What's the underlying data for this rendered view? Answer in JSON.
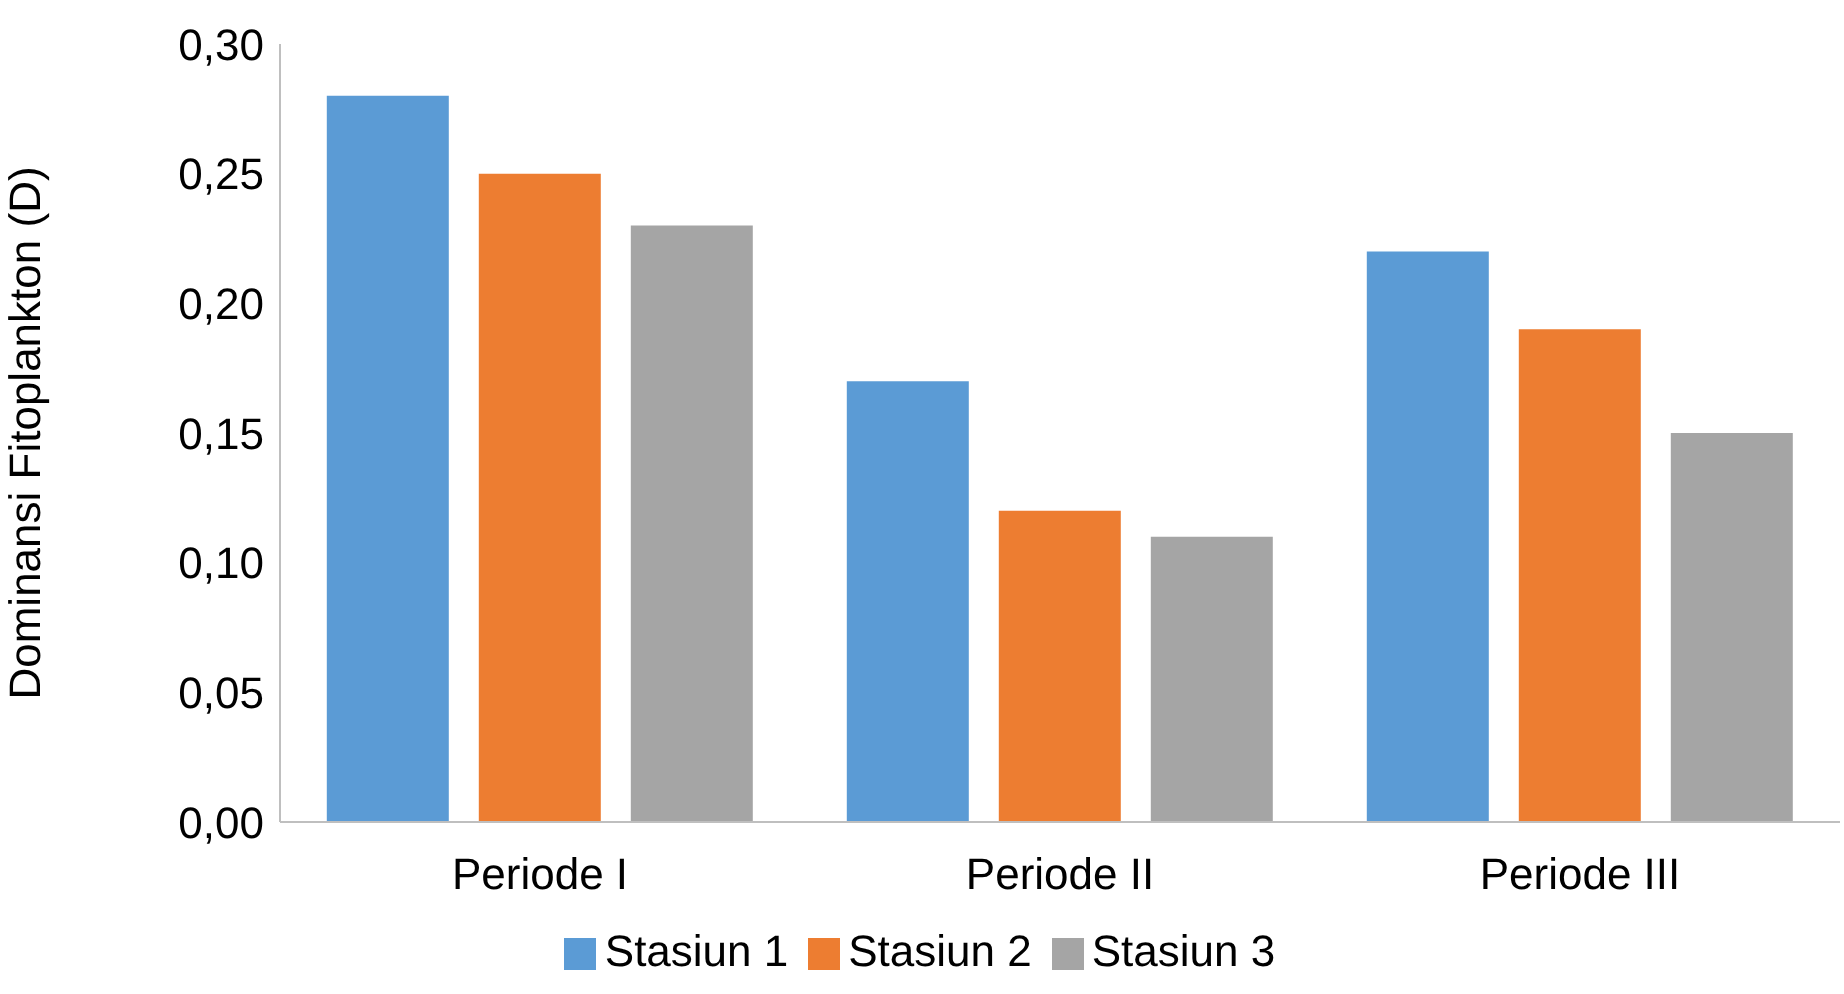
{
  "chart_data": {
    "type": "bar",
    "ylabel": "Dominansi Fitoplankton (D)",
    "categories": [
      "Periode I",
      "Periode II",
      "Periode III"
    ],
    "series": [
      {
        "name": "Stasiun 1",
        "color": "#5b9bd5",
        "values": [
          0.28,
          0.17,
          0.22
        ]
      },
      {
        "name": "Stasiun 2",
        "color": "#ed7d31",
        "values": [
          0.25,
          0.12,
          0.19
        ]
      },
      {
        "name": "Stasiun 3",
        "color": "#a5a5a5",
        "values": [
          0.23,
          0.11,
          0.15
        ]
      }
    ],
    "ylim": [
      0,
      0.3
    ],
    "yticks": [
      {
        "value": 0,
        "label": "0,00"
      },
      {
        "value": 0.05,
        "label": "0,05"
      },
      {
        "value": 0.1,
        "label": "0,10"
      },
      {
        "value": 0.15,
        "label": "0,15"
      },
      {
        "value": 0.2,
        "label": "0,20"
      },
      {
        "value": 0.25,
        "label": "0,25"
      },
      {
        "value": 0.3,
        "label": "0,30"
      }
    ],
    "grid": false,
    "legend": "bottom"
  }
}
